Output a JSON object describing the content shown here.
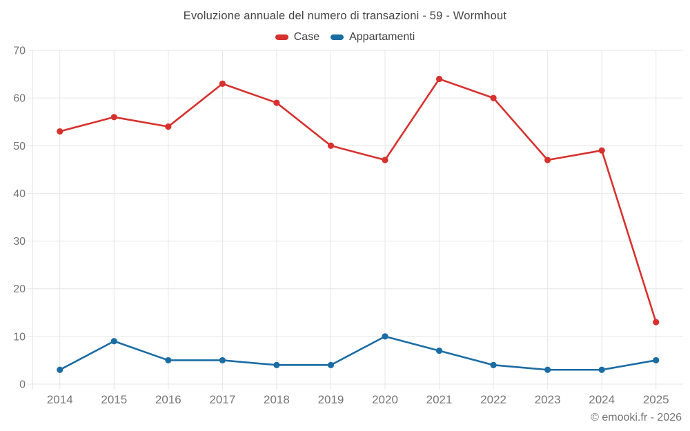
{
  "title": "Evoluzione annuale del numero di transazioni - 59 - Wormhout",
  "footer": {
    "text": "© emooki.fr - 2026"
  },
  "colors": {
    "case_red": "#d7312e",
    "appartamenti_blue": "#1b6ca3",
    "grid": "#e6e6e6",
    "axis_text": "#757575",
    "title_text": "#424242",
    "background": "#ffffff"
  },
  "chart_data": {
    "type": "line",
    "title": "Evoluzione annuale del numero di transazioni - 59 - Wormhout",
    "categories": [
      "2014",
      "2015",
      "2016",
      "2017",
      "2018",
      "2019",
      "2020",
      "2021",
      "2022",
      "2023",
      "2024",
      "2025"
    ],
    "series": [
      {
        "name": "Case",
        "color": "#d7312e",
        "values": [
          53,
          56,
          54,
          63,
          59,
          50,
          47,
          64,
          60,
          47,
          49,
          13
        ]
      },
      {
        "name": "Appartamenti",
        "color": "#1b6ca3",
        "values": [
          3,
          9,
          5,
          5,
          4,
          4,
          10,
          7,
          4,
          3,
          3,
          5
        ]
      }
    ],
    "xlabel": "",
    "ylabel": "",
    "ylim": [
      0,
      70
    ],
    "yticks": [
      0,
      10,
      20,
      30,
      40,
      50,
      60,
      70
    ],
    "grid": true,
    "legend_position": "top",
    "markers": true
  }
}
